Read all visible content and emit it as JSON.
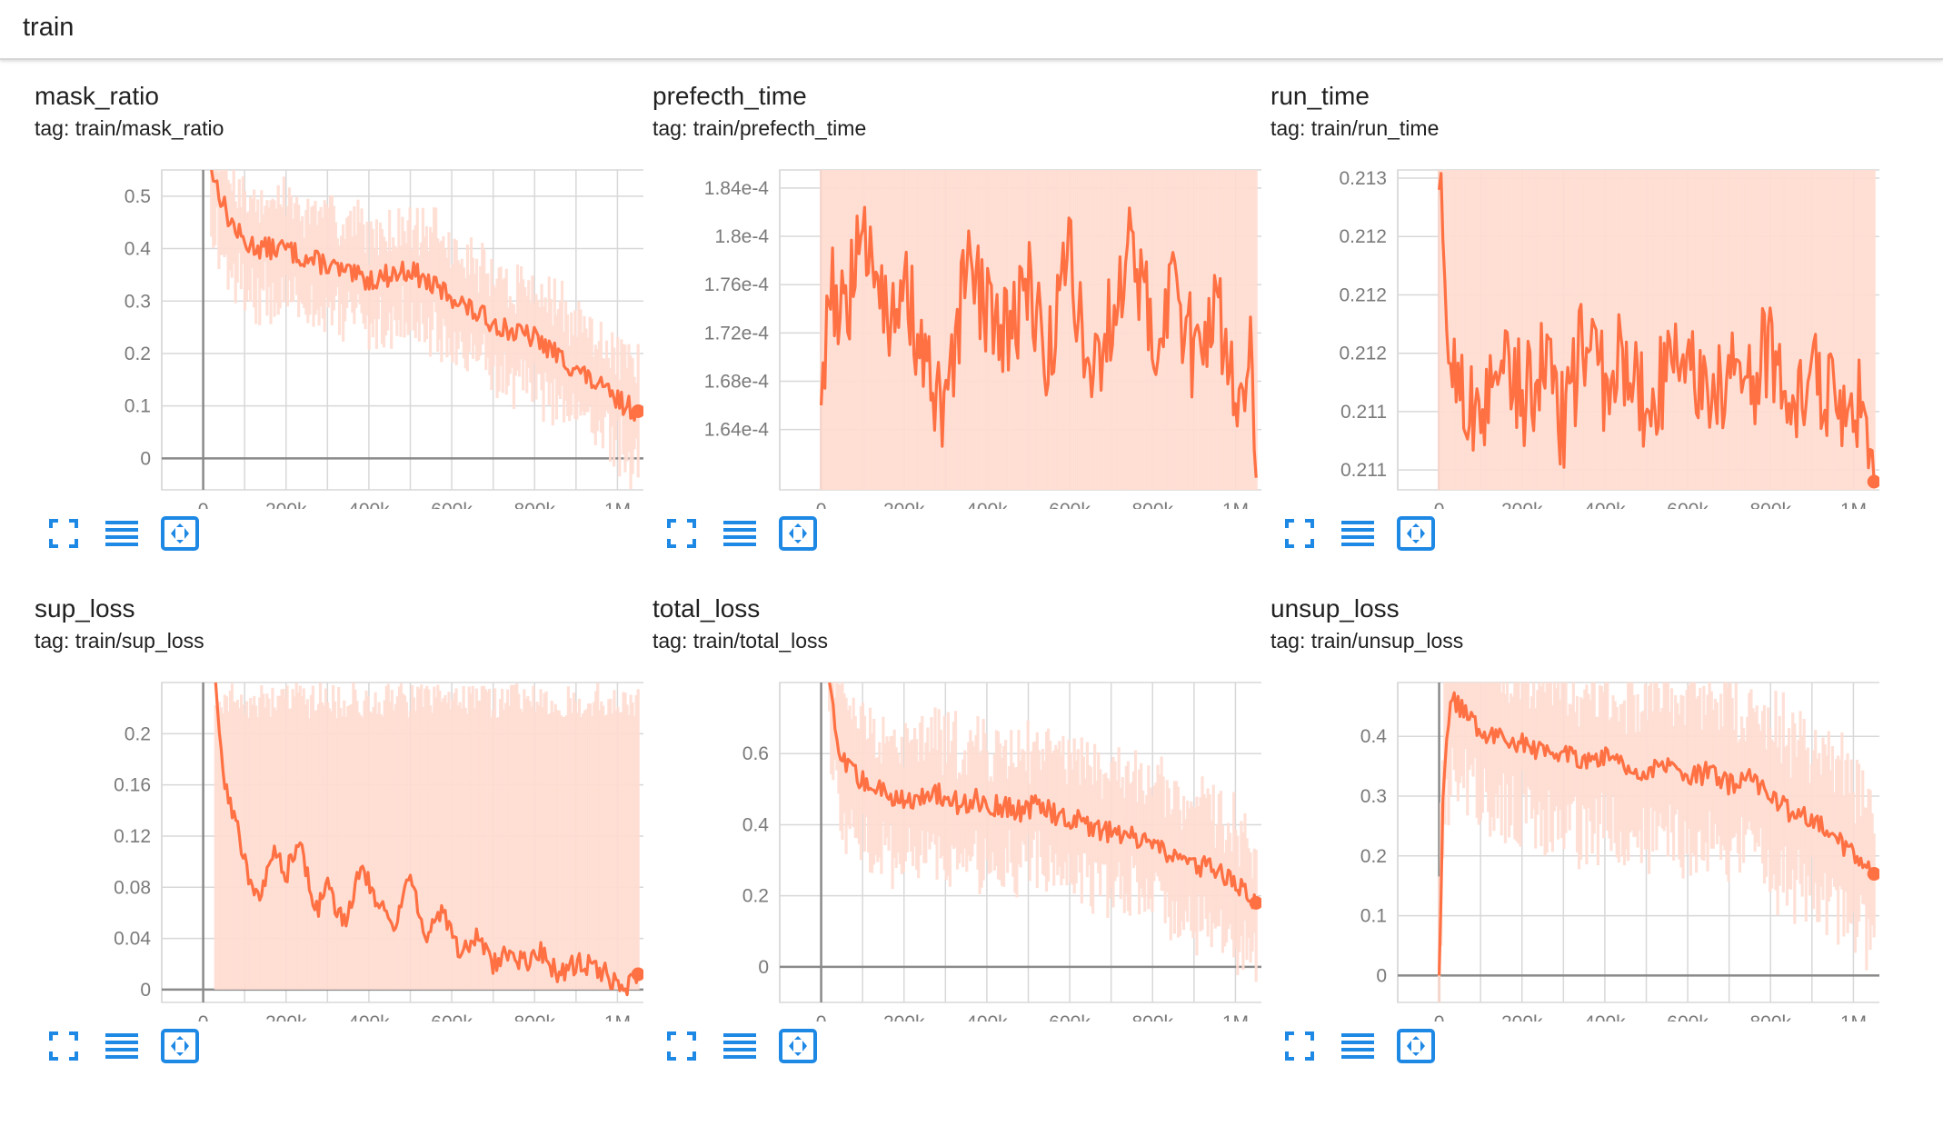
{
  "header": {
    "title": "train"
  },
  "colors": {
    "line": "#ff7043",
    "band": "#ffddd2",
    "grid": "#d8d8d8",
    "axis": "#8a8a8a",
    "control": "#1e88e5"
  },
  "controls": [
    {
      "icon": "fullscreen-icon"
    },
    {
      "icon": "toggle-log-scale-icon"
    },
    {
      "icon": "fit-domain-icon"
    }
  ],
  "charts": [
    {
      "title": "mask_ratio",
      "tag": "tag: train/mask_ratio"
    },
    {
      "title": "prefecth_time",
      "tag": "tag: train/prefecth_time"
    },
    {
      "title": "run_time",
      "tag": "tag: train/run_time"
    },
    {
      "title": "sup_loss",
      "tag": "tag: train/sup_loss"
    },
    {
      "title": "total_loss",
      "tag": "tag: train/total_loss"
    },
    {
      "title": "unsup_loss",
      "tag": "tag: train/unsup_loss"
    }
  ],
  "chart_data": [
    {
      "type": "line",
      "title": "mask_ratio",
      "subtitle": "tag: train/mask_ratio",
      "xlabel": "",
      "ylabel": "",
      "grid": true,
      "xlim": [
        -100000,
        1100000
      ],
      "ylim": [
        -0.06,
        0.55
      ],
      "x_ticks": [
        0,
        200000,
        400000,
        600000,
        800000,
        1000000
      ],
      "x_tick_labels": [
        "0",
        "200k",
        "400k",
        "600k",
        "800k",
        "1M"
      ],
      "y_ticks": [
        0,
        0.1,
        0.2,
        0.3,
        0.4,
        0.5
      ],
      "y_tick_labels": [
        "0",
        "0.1",
        "0.2",
        "0.3",
        "0.4",
        "0.5"
      ],
      "band_width": 0.09,
      "series": [
        {
          "x": [
            20000,
            60000,
            100000,
            150000,
            200000,
            250000,
            300000,
            350000,
            400000,
            450000,
            500000,
            550000,
            600000,
            650000,
            700000,
            750000,
            800000,
            850000,
            900000,
            950000,
            1000000,
            1050000
          ],
          "values": [
            0.55,
            0.46,
            0.41,
            0.4,
            0.4,
            0.38,
            0.37,
            0.35,
            0.34,
            0.35,
            0.36,
            0.33,
            0.31,
            0.28,
            0.26,
            0.24,
            0.23,
            0.2,
            0.17,
            0.14,
            0.11,
            0.09
          ]
        }
      ]
    },
    {
      "type": "line",
      "title": "prefecth_time",
      "subtitle": "tag: train/prefecth_time",
      "xlabel": "",
      "ylabel": "",
      "grid": true,
      "xlim": [
        -100000,
        1100000
      ],
      "ylim": [
        0.000159,
        0.0001855
      ],
      "x_ticks": [
        0,
        200000,
        400000,
        600000,
        800000,
        1000000
      ],
      "x_tick_labels": [
        "0",
        "200k",
        "400k",
        "600k",
        "800k",
        "1M"
      ],
      "y_ticks": [
        0.000164,
        0.000168,
        0.000172,
        0.000176,
        0.00018,
        0.000184
      ],
      "y_tick_labels": [
        "1.64e-4",
        "1.68e-4",
        "1.72e-4",
        "1.76e-4",
        "1.8e-4",
        "1.84e-4"
      ],
      "band_width": 0.0,
      "series": [
        {
          "x": [
            0,
            20000,
            50000,
            90000,
            130000,
            170000,
            210000,
            250000,
            300000,
            350000,
            400000,
            450000,
            500000,
            550000,
            600000,
            650000,
            700000,
            750000,
            800000,
            850000,
            900000,
            950000,
            1000000,
            1040000,
            1050000
          ],
          "values": [
            0.000166,
            0.000177,
            0.000173,
            0.000178,
            0.00018,
            0.000172,
            0.000175,
            0.000169,
            0.000164,
            0.000177,
            0.000174,
            0.000172,
            0.000176,
            0.00017,
            0.000179,
            0.000168,
            0.000173,
            0.00018,
            0.000171,
            0.000176,
            0.00017,
            0.000175,
            0.000166,
            0.000172,
            0.00016
          ]
        }
      ]
    },
    {
      "type": "line",
      "title": "run_time",
      "subtitle": "tag: train/run_time",
      "xlabel": "",
      "ylabel": "",
      "grid": true,
      "xlim": [
        -100000,
        1100000
      ],
      "ylim": [
        0.21033,
        0.21307
      ],
      "x_ticks": [
        0,
        200000,
        400000,
        600000,
        800000,
        1000000
      ],
      "x_tick_labels": [
        "0",
        "200k",
        "400k",
        "600k",
        "800k",
        "1M"
      ],
      "y_ticks": [
        0.2105,
        0.211,
        0.2115,
        0.212,
        0.2125,
        0.213
      ],
      "y_tick_labels": [
        "0.211",
        "0.211",
        "0.212",
        "0.212",
        "0.212",
        "0.213"
      ],
      "band_width": 0.0,
      "series": [
        {
          "x": [
            0,
            20000,
            60000,
            100000,
            150000,
            200000,
            250000,
            300000,
            350000,
            400000,
            450000,
            500000,
            550000,
            600000,
            650000,
            700000,
            750000,
            800000,
            850000,
            900000,
            950000,
            1000000,
            1030000,
            1050000
          ],
          "values": [
            0.2129,
            0.2116,
            0.2112,
            0.2107,
            0.2117,
            0.2111,
            0.2114,
            0.2109,
            0.2116,
            0.2112,
            0.2115,
            0.211,
            0.2113,
            0.2117,
            0.2109,
            0.2114,
            0.2112,
            0.2116,
            0.2109,
            0.2113,
            0.2111,
            0.2112,
            0.2109,
            0.2104
          ]
        }
      ]
    },
    {
      "type": "line",
      "title": "sup_loss",
      "subtitle": "tag: train/sup_loss",
      "xlabel": "",
      "ylabel": "",
      "grid": true,
      "xlim": [
        -100000,
        1100000
      ],
      "ylim": [
        -0.01,
        0.24
      ],
      "x_ticks": [
        0,
        200000,
        400000,
        600000,
        800000,
        1000000
      ],
      "x_tick_labels": [
        "0",
        "200k",
        "400k",
        "600k",
        "800k",
        "1M"
      ],
      "y_ticks": [
        0,
        0.04,
        0.08,
        0.12,
        0.16,
        0.2
      ],
      "y_tick_labels": [
        "0",
        "0.04",
        "0.08",
        "0.12",
        "0.16",
        "0.2"
      ],
      "band_width": 0.0,
      "series": [
        {
          "x": [
            30000,
            50000,
            80000,
            110000,
            140000,
            170000,
            200000,
            230000,
            270000,
            300000,
            340000,
            380000,
            420000,
            460000,
            500000,
            540000,
            580000,
            620000,
            660000,
            700000,
            740000,
            780000,
            820000,
            860000,
            900000,
            940000,
            980000,
            1020000,
            1050000
          ],
          "values": [
            0.24,
            0.16,
            0.13,
            0.09,
            0.07,
            0.11,
            0.09,
            0.12,
            0.06,
            0.08,
            0.05,
            0.1,
            0.07,
            0.05,
            0.09,
            0.04,
            0.06,
            0.03,
            0.04,
            0.02,
            0.03,
            0.02,
            0.03,
            0.01,
            0.02,
            0.02,
            0.01,
            0.0,
            0.012
          ]
        }
      ]
    },
    {
      "type": "line",
      "title": "total_loss",
      "subtitle": "tag: train/total_loss",
      "xlabel": "",
      "ylabel": "",
      "grid": true,
      "xlim": [
        -100000,
        1100000
      ],
      "ylim": [
        -0.1,
        0.8
      ],
      "x_ticks": [
        0,
        200000,
        400000,
        600000,
        800000,
        1000000
      ],
      "x_tick_labels": [
        "0",
        "200k",
        "400k",
        "600k",
        "800k",
        "1M"
      ],
      "y_ticks": [
        0,
        0.2,
        0.4,
        0.6
      ],
      "y_tick_labels": [
        "0",
        "0.2",
        "0.4",
        "0.6"
      ],
      "band_width": 0.16,
      "series": [
        {
          "x": [
            20000,
            40000,
            80000,
            130000,
            180000,
            230000,
            280000,
            330000,
            380000,
            430000,
            480000,
            530000,
            580000,
            630000,
            680000,
            730000,
            780000,
            830000,
            880000,
            930000,
            980000,
            1020000,
            1050000
          ],
          "values": [
            0.8,
            0.6,
            0.54,
            0.5,
            0.48,
            0.47,
            0.49,
            0.46,
            0.47,
            0.45,
            0.44,
            0.46,
            0.42,
            0.41,
            0.38,
            0.37,
            0.35,
            0.32,
            0.3,
            0.28,
            0.25,
            0.22,
            0.18
          ]
        }
      ]
    },
    {
      "type": "line",
      "title": "unsup_loss",
      "subtitle": "tag: train/unsup_loss",
      "xlabel": "",
      "ylabel": "",
      "grid": true,
      "xlim": [
        -100000,
        1100000
      ],
      "ylim": [
        -0.045,
        0.49
      ],
      "x_ticks": [
        0,
        200000,
        400000,
        600000,
        800000,
        1000000
      ],
      "x_tick_labels": [
        "0",
        "200k",
        "400k",
        "600k",
        "800k",
        "1M"
      ],
      "y_ticks": [
        0,
        0.1,
        0.2,
        0.3,
        0.4
      ],
      "y_tick_labels": [
        "0",
        "0.1",
        "0.2",
        "0.3",
        "0.4"
      ],
      "band_width": 0.12,
      "series": [
        {
          "x": [
            0,
            10000,
            30000,
            60000,
            100000,
            150000,
            200000,
            250000,
            300000,
            350000,
            400000,
            450000,
            500000,
            550000,
            600000,
            650000,
            700000,
            750000,
            800000,
            850000,
            900000,
            950000,
            1000000,
            1050000
          ],
          "values": [
            0.0,
            0.32,
            0.46,
            0.44,
            0.41,
            0.4,
            0.39,
            0.37,
            0.38,
            0.36,
            0.37,
            0.35,
            0.34,
            0.35,
            0.33,
            0.34,
            0.32,
            0.33,
            0.3,
            0.27,
            0.26,
            0.24,
            0.2,
            0.17
          ]
        }
      ]
    }
  ]
}
